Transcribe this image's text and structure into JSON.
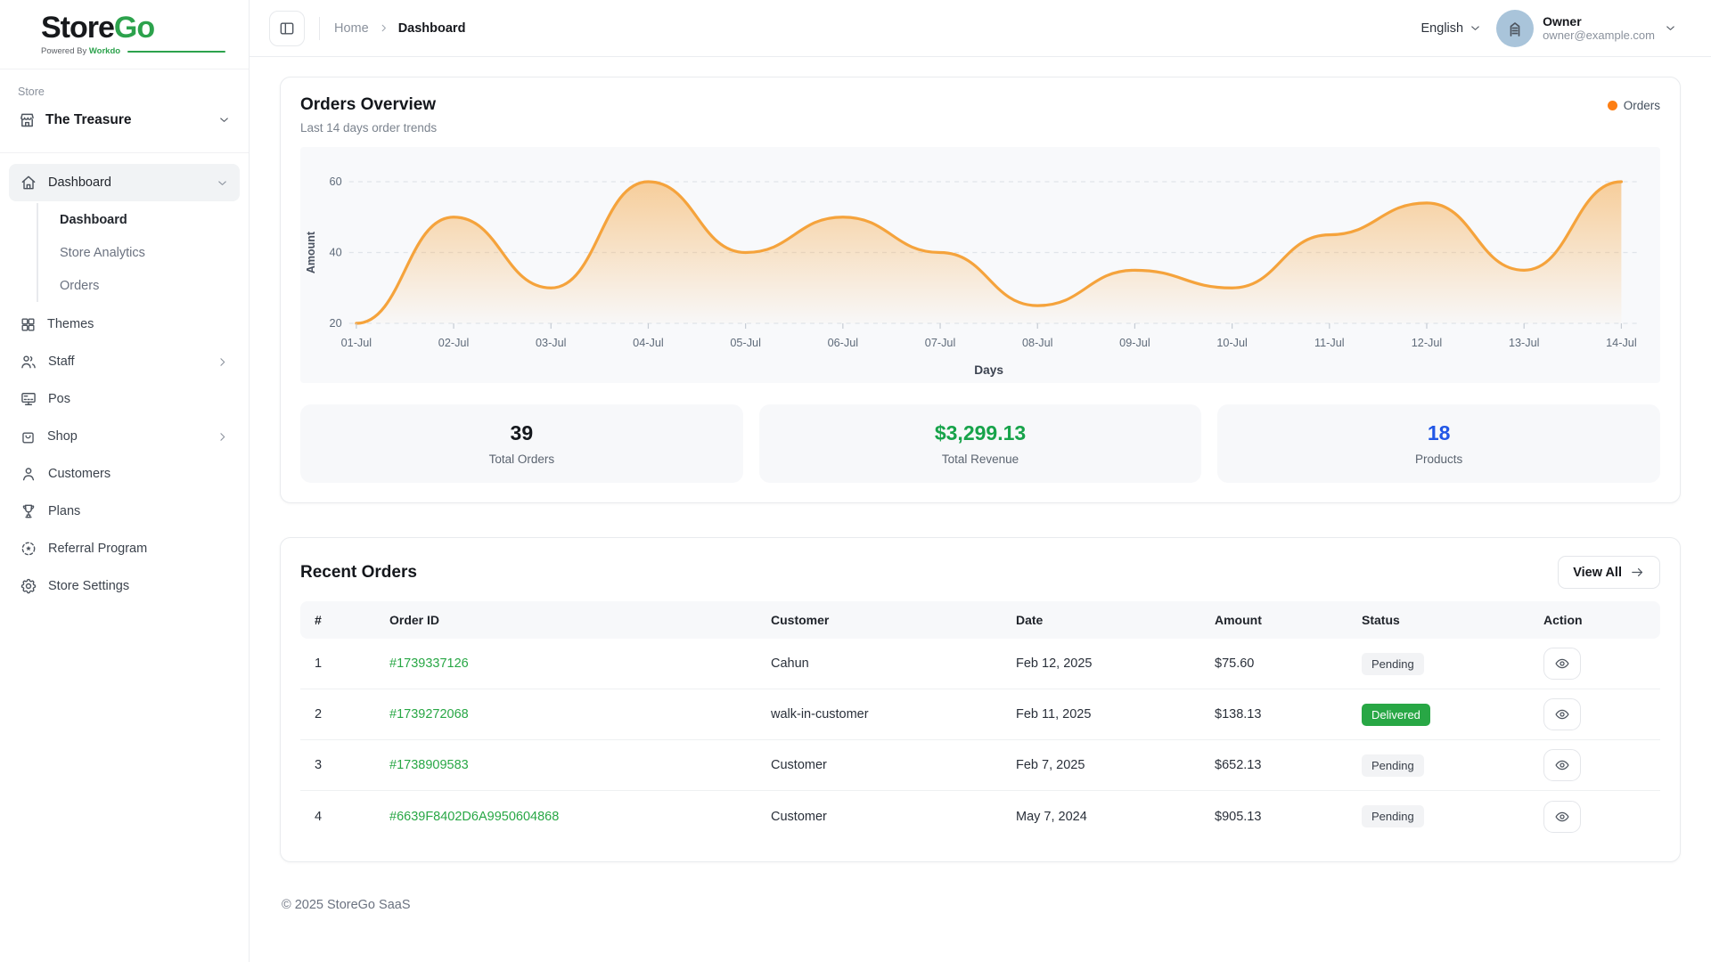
{
  "brand": {
    "name_primary": "Store",
    "name_secondary": "Go",
    "tagline_prefix": "Powered By",
    "tagline_brand": "Workdo"
  },
  "sidebar": {
    "section_label": "Store",
    "store": {
      "name": "The Treasure",
      "icon": "storefront-icon"
    },
    "nav": [
      {
        "label": "Dashboard",
        "icon": "home",
        "active": true,
        "chevron": "down",
        "children": [
          {
            "label": "Dashboard",
            "active": true
          },
          {
            "label": "Store Analytics",
            "active": false
          },
          {
            "label": "Orders",
            "active": false
          }
        ]
      },
      {
        "label": "Themes",
        "icon": "grid"
      },
      {
        "label": "Staff",
        "icon": "users",
        "chevron": "right"
      },
      {
        "label": "Pos",
        "icon": "pos"
      },
      {
        "label": "Shop",
        "icon": "bag",
        "chevron": "right"
      },
      {
        "label": "Customers",
        "icon": "user"
      },
      {
        "label": "Plans",
        "icon": "trophy"
      },
      {
        "label": "Referral Program",
        "icon": "referral"
      },
      {
        "label": "Store Settings",
        "icon": "gear"
      }
    ]
  },
  "header": {
    "breadcrumb_home": "Home",
    "breadcrumb_current": "Dashboard",
    "language": "English",
    "user": {
      "name": "Owner",
      "email": "owner@example.com"
    }
  },
  "overview": {
    "title": "Orders Overview",
    "subtitle": "Last 14 days order trends",
    "legend_label": "Orders",
    "legend_color": "#fd7e14"
  },
  "chart_data": {
    "type": "area",
    "title": "Orders Overview",
    "x": [
      "01-Jul",
      "02-Jul",
      "03-Jul",
      "04-Jul",
      "05-Jul",
      "06-Jul",
      "07-Jul",
      "08-Jul",
      "09-Jul",
      "10-Jul",
      "11-Jul",
      "12-Jul",
      "13-Jul",
      "14-Jul"
    ],
    "series": [
      {
        "name": "Orders",
        "values": [
          20,
          50,
          30,
          60,
          40,
          50,
          40,
          25,
          35,
          30,
          45,
          54,
          35,
          60
        ]
      }
    ],
    "xlabel": "Days",
    "ylabel": "Amount",
    "ylim": [
      20,
      60
    ],
    "yticks": [
      20,
      40,
      60
    ],
    "grid": "dashed-horizontal",
    "legend_position": "top-right",
    "line_color": "#f5a33c",
    "fill_from": "rgba(245,163,60,0.50)",
    "fill_to": "rgba(245,163,60,0.02)"
  },
  "stats": [
    {
      "value": "39",
      "label": "Total Orders",
      "color": "#15181d"
    },
    {
      "value": "$3,299.13",
      "label": "Total Revenue",
      "color": "#17a34a"
    },
    {
      "value": "18",
      "label": "Products",
      "color": "#2257e6"
    }
  ],
  "recent_orders": {
    "title": "Recent Orders",
    "view_all_label": "View All",
    "columns": [
      "#",
      "Order ID",
      "Customer",
      "Date",
      "Amount",
      "Status",
      "Action"
    ],
    "rows": [
      {
        "num": "1",
        "order_id": "#1739337126",
        "customer": "Cahun",
        "date": "Feb 12, 2025",
        "amount": "$75.60",
        "status": "Pending"
      },
      {
        "num": "2",
        "order_id": "#1739272068",
        "customer": "walk-in-customer",
        "date": "Feb 11, 2025",
        "amount": "$138.13",
        "status": "Delivered"
      },
      {
        "num": "3",
        "order_id": "#1738909583",
        "customer": "Customer",
        "date": "Feb 7, 2025",
        "amount": "$652.13",
        "status": "Pending"
      },
      {
        "num": "4",
        "order_id": "#6639F8402D6A9950604868",
        "customer": "Customer",
        "date": "May 7, 2024",
        "amount": "$905.13",
        "status": "Pending"
      }
    ]
  },
  "footer": {
    "copyright": "© 2025 StoreGo SaaS"
  }
}
